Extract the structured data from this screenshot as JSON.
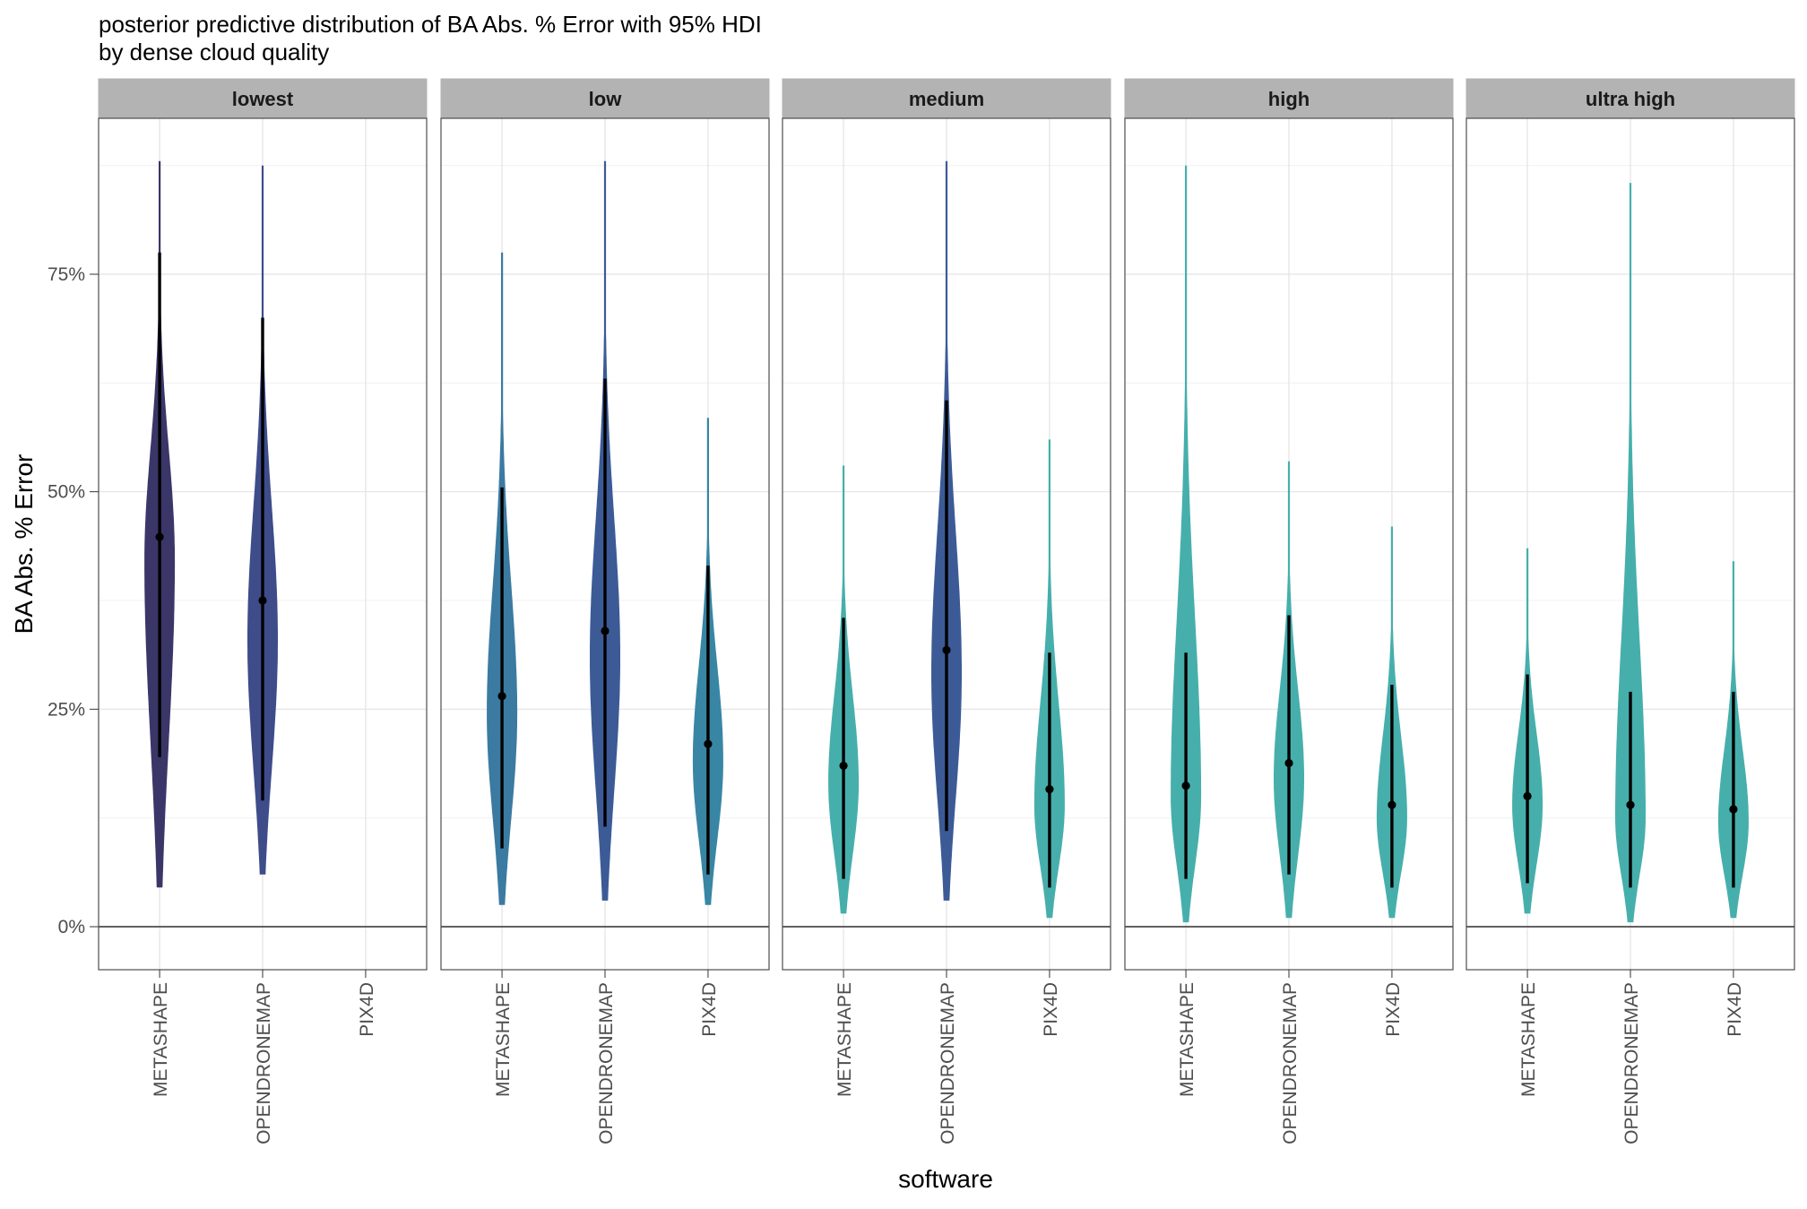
{
  "chart_data": {
    "type": "violin",
    "title": "posterior predictive distribution of BA Abs. % Error with 95% HDI",
    "subtitle": "by dense cloud quality",
    "xlabel": "software",
    "ylabel": "BA Abs. % Error",
    "ylim": [
      -0.06,
      0.94
    ],
    "yticks": [
      0,
      0.25,
      0.5,
      0.75
    ],
    "ytick_labels": [
      "0%",
      "25%",
      "50%",
      "75%"
    ],
    "reference_line": 0,
    "grid": true,
    "legend": "none",
    "categories": [
      "METASHAPE",
      "OPENDRONEMAP",
      "PIX4D"
    ],
    "panels": [
      {
        "name": "lowest",
        "violins": [
          {
            "software": "METASHAPE",
            "median": 0.448,
            "hdi": [
              0.195,
              0.775
            ],
            "min": 0.045,
            "max": 0.88,
            "mode": 0.42,
            "color": "#3b3668"
          },
          {
            "software": "OPENDRONEMAP",
            "median": 0.375,
            "hdi": [
              0.145,
              0.7
            ],
            "min": 0.06,
            "max": 0.875,
            "mode": 0.33,
            "color": "#3e4c8a"
          }
        ]
      },
      {
        "name": "low",
        "violins": [
          {
            "software": "METASHAPE",
            "median": 0.265,
            "hdi": [
              0.09,
              0.505
            ],
            "min": 0.025,
            "max": 0.775,
            "mode": 0.245,
            "color": "#3b7aa1"
          },
          {
            "software": "OPENDRONEMAP",
            "median": 0.34,
            "hdi": [
              0.115,
              0.63
            ],
            "min": 0.03,
            "max": 0.88,
            "mode": 0.31,
            "color": "#3c5b96"
          },
          {
            "software": "PIX4D",
            "median": 0.21,
            "hdi": [
              0.06,
              0.415
            ],
            "min": 0.025,
            "max": 0.585,
            "mode": 0.19,
            "color": "#3886a4"
          }
        ]
      },
      {
        "name": "medium",
        "violins": [
          {
            "software": "METASHAPE",
            "median": 0.185,
            "hdi": [
              0.055,
              0.355
            ],
            "min": 0.015,
            "max": 0.53,
            "mode": 0.165,
            "color": "#46afac"
          },
          {
            "software": "OPENDRONEMAP",
            "median": 0.318,
            "hdi": [
              0.11,
              0.605
            ],
            "min": 0.03,
            "max": 0.88,
            "mode": 0.29,
            "color": "#3c5b96"
          },
          {
            "software": "PIX4D",
            "median": 0.158,
            "hdi": [
              0.045,
              0.315
            ],
            "min": 0.01,
            "max": 0.56,
            "mode": 0.14,
            "color": "#46afac"
          }
        ]
      },
      {
        "name": "high",
        "violins": [
          {
            "software": "METASHAPE",
            "median": 0.162,
            "hdi": [
              0.055,
              0.315
            ],
            "min": 0.005,
            "max": 0.875,
            "mode": 0.15,
            "color": "#46afac"
          },
          {
            "software": "OPENDRONEMAP",
            "median": 0.188,
            "hdi": [
              0.06,
              0.358
            ],
            "min": 0.01,
            "max": 0.535,
            "mode": 0.17,
            "color": "#46afac"
          },
          {
            "software": "PIX4D",
            "median": 0.14,
            "hdi": [
              0.045,
              0.278
            ],
            "min": 0.01,
            "max": 0.46,
            "mode": 0.125,
            "color": "#46afac"
          }
        ]
      },
      {
        "name": "ultra high",
        "violins": [
          {
            "software": "METASHAPE",
            "median": 0.15,
            "hdi": [
              0.05,
              0.29
            ],
            "min": 0.015,
            "max": 0.435,
            "mode": 0.14,
            "color": "#46afac"
          },
          {
            "software": "OPENDRONEMAP",
            "median": 0.14,
            "hdi": [
              0.045,
              0.27
            ],
            "min": 0.005,
            "max": 0.855,
            "mode": 0.125,
            "color": "#46afac"
          },
          {
            "software": "PIX4D",
            "median": 0.135,
            "hdi": [
              0.045,
              0.27
            ],
            "min": 0.01,
            "max": 0.42,
            "mode": 0.12,
            "color": "#46afac"
          }
        ]
      }
    ]
  }
}
